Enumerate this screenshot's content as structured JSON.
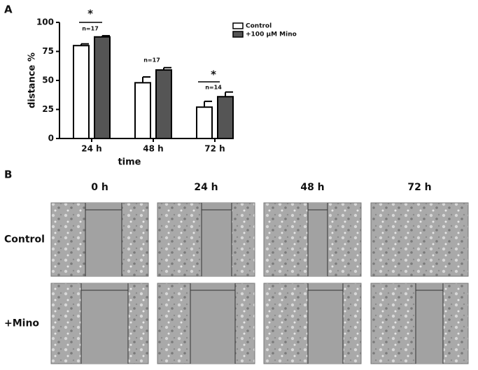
{
  "panel_labels": [
    "A",
    "B"
  ],
  "chart_data": {
    "type": "bar",
    "categories": [
      "24 h",
      "48 h",
      "72 h"
    ],
    "series": [
      {
        "name": "Control",
        "color": "#ffffff",
        "values": [
          80,
          48,
          27
        ],
        "errors": [
          1.5,
          5,
          5
        ]
      },
      {
        "name": "+100 µM Mino",
        "color": "#555555",
        "values": [
          87.5,
          59,
          36
        ],
        "errors": [
          1,
          2,
          4
        ]
      }
    ],
    "xlabel": "time",
    "ylabel": "distance %",
    "ylim": [
      0,
      100
    ],
    "yticks": [
      0,
      25,
      50,
      75,
      100
    ],
    "annotations": [
      "*",
      "n=17",
      "n=17",
      "*",
      "n=14"
    ],
    "legend": "upper right"
  },
  "images": {
    "columns": [
      "0 h",
      "24 h",
      "48 h",
      "72 h"
    ],
    "rows": [
      "Control",
      "+Mino"
    ]
  }
}
